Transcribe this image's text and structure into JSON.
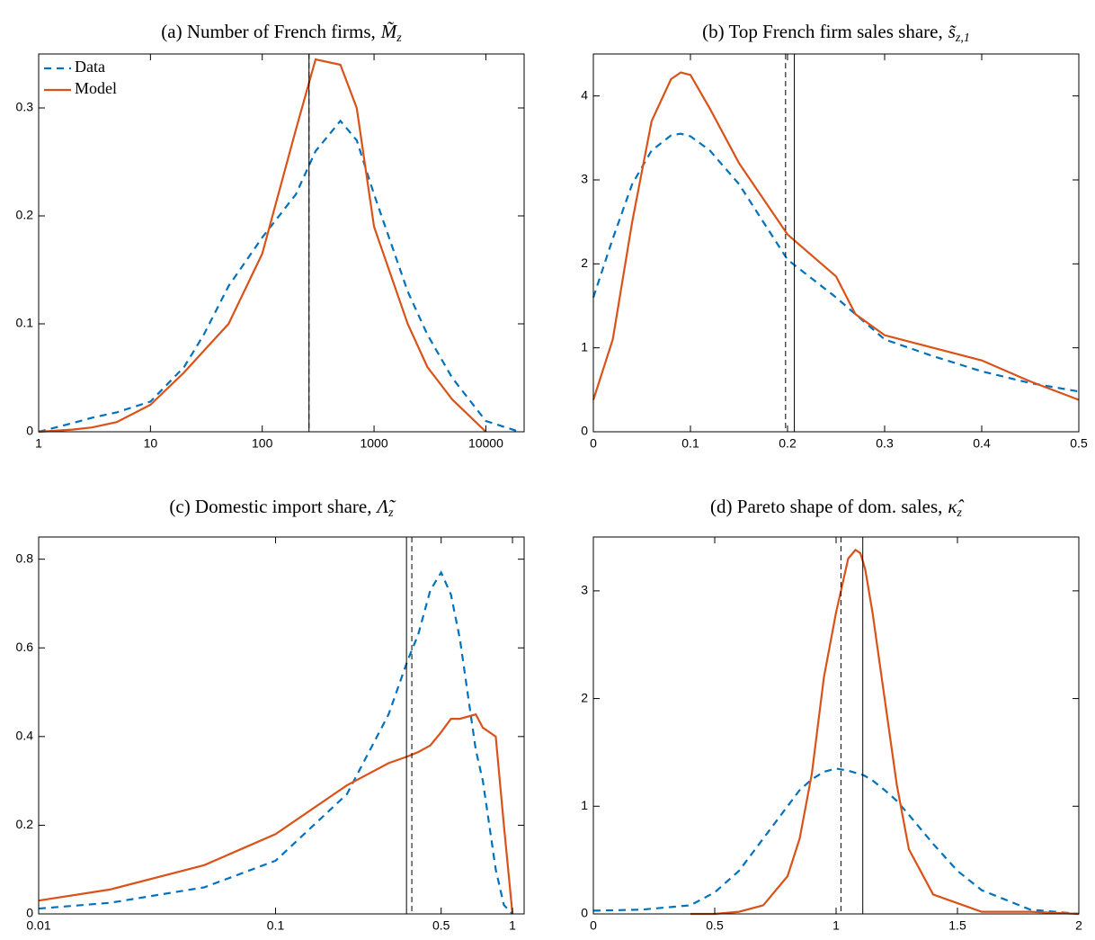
{
  "chart_data": [
    {
      "type": "line",
      "title": "(a) Number of French firms,",
      "title_symbol": {
        "base": "M̃",
        "sub": "z"
      },
      "xscale": "log",
      "xlim": [
        1,
        22000
      ],
      "xticks": [
        1,
        10,
        100,
        1000,
        10000
      ],
      "ylim": [
        0,
        0.35
      ],
      "yticks": [
        0,
        0.1,
        0.2,
        0.3
      ],
      "legend": "upper left",
      "x": [
        1,
        2,
        3,
        5,
        10,
        20,
        30,
        50,
        100,
        200,
        300,
        500,
        700,
        1000,
        2000,
        3000,
        5000,
        10000,
        20000
      ],
      "series": [
        {
          "name": "Data",
          "color": "#0072BD",
          "dashed": true,
          "values": [
            0.0,
            0.008,
            0.013,
            0.018,
            0.028,
            0.06,
            0.09,
            0.135,
            0.18,
            0.22,
            0.26,
            0.288,
            0.27,
            0.22,
            0.13,
            0.09,
            0.05,
            0.01,
            0.0
          ]
        },
        {
          "name": "Model",
          "color": "#D95319",
          "dashed": false,
          "values": [
            0.0,
            0.002,
            0.004,
            0.009,
            0.025,
            0.055,
            0.075,
            0.1,
            0.165,
            0.28,
            0.345,
            0.34,
            0.3,
            0.19,
            0.1,
            0.06,
            0.03,
            0.0,
            null
          ]
        }
      ],
      "vlines": [
        {
          "x": 262,
          "dashed": false
        },
        {
          "x": 262,
          "dashed": true
        }
      ]
    },
    {
      "type": "line",
      "title": "(b) Top French firm sales share,",
      "title_symbol": {
        "base": "s̃",
        "sub": "z,1"
      },
      "xlim": [
        0,
        0.5
      ],
      "xticks": [
        0,
        0.1,
        0.2,
        0.3,
        0.4,
        0.5
      ],
      "ylim": [
        0,
        4.5
      ],
      "yticks": [
        0,
        1,
        2,
        3,
        4
      ],
      "x": [
        0,
        0.02,
        0.04,
        0.06,
        0.08,
        0.09,
        0.1,
        0.12,
        0.15,
        0.2,
        0.25,
        0.27,
        0.3,
        0.35,
        0.4,
        0.45,
        0.5
      ],
      "series": [
        {
          "color": "#0072BD",
          "dashed": true,
          "values": [
            1.6,
            2.3,
            2.95,
            3.35,
            3.53,
            3.55,
            3.52,
            3.35,
            2.95,
            2.05,
            1.6,
            1.4,
            1.1,
            0.9,
            0.72,
            0.58,
            0.48
          ]
        },
        {
          "color": "#D95319",
          "dashed": false,
          "values": [
            0.38,
            1.1,
            2.5,
            3.7,
            4.2,
            4.28,
            4.25,
            3.85,
            3.2,
            2.35,
            1.85,
            1.4,
            1.15,
            1.0,
            0.85,
            0.6,
            0.38
          ]
        }
      ],
      "vlines": [
        {
          "x": 0.198,
          "dashed": true
        },
        {
          "x": 0.207,
          "dashed": false
        }
      ]
    },
    {
      "type": "line",
      "title": "(c) Domestic import share,",
      "title_symbol": {
        "base": "Λ̃",
        "sub": "z"
      },
      "xscale": "log",
      "xlim": [
        0.01,
        1.12
      ],
      "xticks": [
        0.01,
        0.1,
        0.5,
        1
      ],
      "ylim": [
        0,
        0.85
      ],
      "yticks": [
        0,
        0.2,
        0.4,
        0.6,
        0.8
      ],
      "x": [
        0.01,
        0.02,
        0.05,
        0.1,
        0.2,
        0.3,
        0.36,
        0.4,
        0.45,
        0.5,
        0.55,
        0.6,
        0.7,
        0.75,
        0.85,
        0.92,
        1
      ],
      "series": [
        {
          "color": "#0072BD",
          "dashed": true,
          "values": [
            0.012,
            0.025,
            0.06,
            0.12,
            0.27,
            0.45,
            0.57,
            0.63,
            0.73,
            0.77,
            0.72,
            0.62,
            0.37,
            0.3,
            0.1,
            0.02,
            0.0
          ]
        },
        {
          "color": "#D95319",
          "dashed": false,
          "values": [
            0.03,
            0.055,
            0.11,
            0.18,
            0.29,
            0.34,
            0.355,
            0.365,
            0.38,
            0.41,
            0.44,
            0.44,
            0.45,
            0.42,
            0.4,
            0.2,
            0.0
          ]
        }
      ],
      "vlines": [
        {
          "x": 0.357,
          "dashed": false
        },
        {
          "x": 0.376,
          "dashed": true
        }
      ]
    },
    {
      "type": "line",
      "title": "(d) Pareto shape of dom. sales,",
      "title_symbol": {
        "base": "κ̂",
        "sub": "z"
      },
      "xlim": [
        0,
        2
      ],
      "xticks": [
        0,
        0.5,
        1,
        1.5,
        2
      ],
      "ylim": [
        0,
        3.5
      ],
      "yticks": [
        0,
        1,
        2,
        3
      ],
      "x": [
        0,
        0.2,
        0.4,
        0.5,
        0.6,
        0.7,
        0.8,
        0.85,
        0.9,
        0.95,
        1.0,
        1.05,
        1.08,
        1.1,
        1.12,
        1.15,
        1.2,
        1.25,
        1.3,
        1.4,
        1.5,
        1.6,
        1.8,
        2
      ],
      "series": [
        {
          "color": "#0072BD",
          "dashed": true,
          "values": [
            0.03,
            0.04,
            0.08,
            0.2,
            0.4,
            0.7,
            1.0,
            1.15,
            1.25,
            1.32,
            1.35,
            1.33,
            1.31,
            1.3,
            1.28,
            1.24,
            1.15,
            1.05,
            0.92,
            0.65,
            0.4,
            0.22,
            0.04,
            0.0
          ]
        },
        {
          "color": "#D95319",
          "dashed": false,
          "values": [
            null,
            null,
            0.0,
            0.0,
            0.02,
            0.08,
            0.35,
            0.7,
            1.3,
            2.2,
            2.8,
            3.3,
            3.38,
            3.35,
            3.2,
            2.8,
            2.0,
            1.2,
            0.6,
            0.18,
            0.1,
            0.02,
            0.02,
            0.0
          ]
        }
      ],
      "vlines": [
        {
          "x": 1.02,
          "dashed": true
        },
        {
          "x": 1.11,
          "dashed": false
        }
      ]
    }
  ]
}
